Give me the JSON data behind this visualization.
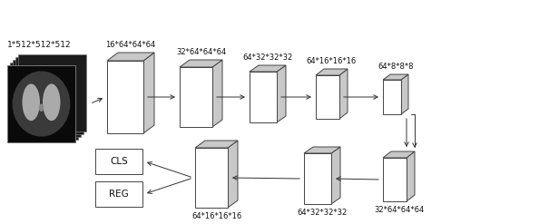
{
  "input_label": "1*512*512*512",
  "encoder_labels": [
    "16*64*64*64",
    "32*64*64*64",
    "64*32*32*32",
    "64*16*16*16",
    "64*8*8*8"
  ],
  "decoder_labels": [
    "32*64*64*64",
    "64*32*32*32",
    "64*16*16*16"
  ],
  "output_labels": [
    "CLS",
    "REG"
  ],
  "bg_color": "#ffffff",
  "box_face_color": "#ffffff",
  "box_side_color": "#c8c8c8",
  "box_edge_color": "#444444",
  "arrow_color": "#333333",
  "text_color": "#111111",
  "font_size": 6.5,
  "fig_width": 6.05,
  "fig_height": 2.47
}
